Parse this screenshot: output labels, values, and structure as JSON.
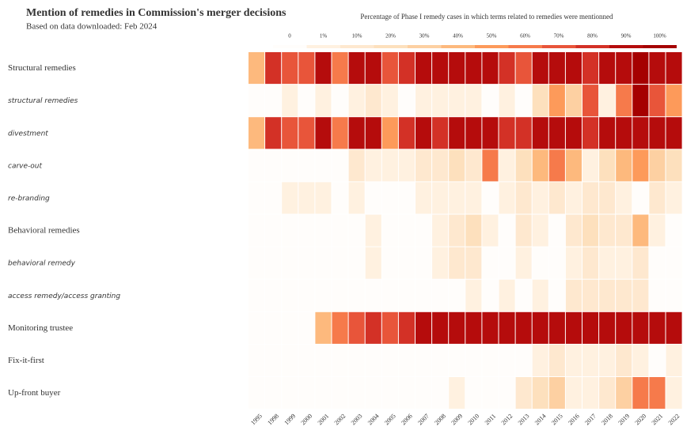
{
  "chart_data": {
    "type": "heatmap",
    "title": "Mention of remedies in Commission's merger decisions",
    "subtitle": "Based on data downloaded: Feb 2024",
    "legend_title": "Percentage of Phase I remedy cases in which terms related to remedies were mentionned",
    "legend_ticks": [
      0,
      {
        "value": 1,
        "label": "1%"
      },
      {
        "value": 10,
        "label": "10%"
      },
      {
        "value": 20,
        "label": "20%"
      },
      {
        "value": 30,
        "label": "30%"
      },
      {
        "value": 40,
        "label": "40%"
      },
      {
        "value": 50,
        "label": "50%"
      },
      {
        "value": 60,
        "label": "60%"
      },
      {
        "value": 70,
        "label": "70%"
      },
      {
        "value": 80,
        "label": "80%"
      },
      {
        "value": 90,
        "label": "90%"
      },
      {
        "value": 100,
        "label": "100%"
      }
    ],
    "colors": [
      "#fffdfb",
      "#fff1e0",
      "#fee8cf",
      "#fde0bd",
      "#fdd0a2",
      "#fdb97d",
      "#fd9a5a",
      "#f67a4b",
      "#e8553a",
      "#d33126",
      "#b50c0c",
      "#a50000"
    ],
    "rows": [
      "Structural remedies",
      "structural remedies",
      "divestment",
      "carve-out",
      "re-branding",
      "Behavioral remedies",
      "behavioral remedy",
      "access remedy/access granting",
      "Monitoring trustee",
      "Fix-it-first",
      "Up-front buyer"
    ],
    "row_italic": [
      false,
      true,
      true,
      true,
      true,
      false,
      true,
      true,
      false,
      false,
      false
    ],
    "categories": [
      "1995",
      "1998",
      "1999",
      "2000",
      "2001",
      "2002",
      "2003",
      "2004",
      "2005",
      "2006",
      "2007",
      "2008",
      "2009",
      "2010",
      "2011",
      "2012",
      "2013",
      "2014",
      "2015",
      "2016",
      "2017",
      "2018",
      "2019",
      "2020",
      "2021",
      "2022"
    ],
    "values": [
      [
        40,
        85,
        75,
        75,
        95,
        65,
        95,
        95,
        70,
        85,
        95,
        95,
        95,
        95,
        95,
        85,
        75,
        95,
        95,
        90,
        80,
        95,
        95,
        100,
        95,
        90
      ],
      [
        0,
        0,
        5,
        0,
        5,
        0,
        5,
        15,
        5,
        0,
        5,
        5,
        5,
        5,
        0,
        5,
        0,
        25,
        50,
        30,
        70,
        5,
        65,
        100,
        70,
        55
      ],
      [
        40,
        85,
        70,
        75,
        95,
        65,
        95,
        95,
        55,
        85,
        90,
        85,
        95,
        95,
        95,
        85,
        80,
        90,
        95,
        90,
        80,
        95,
        95,
        95,
        95,
        90
      ],
      [
        0,
        0,
        0,
        0,
        0,
        0,
        15,
        5,
        5,
        5,
        15,
        15,
        20,
        15,
        60,
        5,
        25,
        40,
        60,
        45,
        5,
        25,
        40,
        50,
        30,
        20
      ],
      [
        0,
        0,
        5,
        5,
        5,
        0,
        5,
        0,
        0,
        0,
        5,
        5,
        5,
        5,
        0,
        5,
        15,
        5,
        15,
        5,
        10,
        15,
        5,
        0,
        15,
        5
      ],
      [
        0,
        0,
        0,
        0,
        0,
        0,
        0,
        5,
        0,
        0,
        0,
        5,
        10,
        20,
        5,
        0,
        10,
        5,
        0,
        15,
        20,
        10,
        15,
        40,
        5,
        0
      ],
      [
        0,
        0,
        0,
        0,
        0,
        0,
        0,
        5,
        0,
        0,
        0,
        5,
        10,
        10,
        0,
        0,
        5,
        0,
        0,
        5,
        10,
        5,
        5,
        15,
        0,
        0
      ],
      [
        0,
        0,
        0,
        0,
        0,
        0,
        0,
        0,
        0,
        0,
        0,
        0,
        0,
        5,
        0,
        5,
        0,
        5,
        0,
        10,
        15,
        10,
        15,
        15,
        0,
        0
      ],
      [
        0,
        0,
        0,
        0,
        40,
        65,
        75,
        80,
        75,
        85,
        95,
        95,
        95,
        95,
        95,
        90,
        90,
        95,
        95,
        95,
        95,
        95,
        95,
        95,
        95,
        95
      ],
      [
        0,
        0,
        0,
        0,
        0,
        0,
        0,
        0,
        0,
        0,
        0,
        0,
        0,
        0,
        0,
        0,
        0,
        5,
        10,
        5,
        5,
        5,
        10,
        5,
        0,
        5
      ],
      [
        0,
        0,
        0,
        0,
        0,
        0,
        0,
        0,
        0,
        0,
        0,
        0,
        5,
        0,
        0,
        0,
        15,
        25,
        30,
        5,
        5,
        10,
        35,
        65,
        60,
        5
      ]
    ]
  }
}
